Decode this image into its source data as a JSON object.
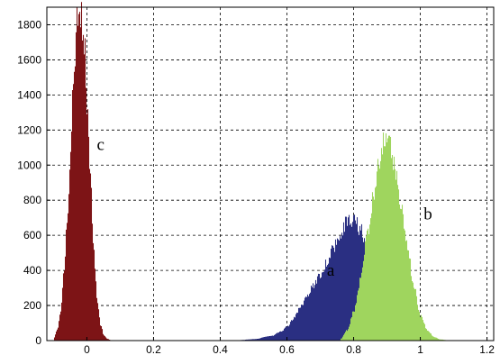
{
  "chart_data": {
    "type": "histogram",
    "title": "",
    "xlabel": "",
    "ylabel": "",
    "xlim": [
      -0.12,
      1.22
    ],
    "ylim": [
      0,
      1900
    ],
    "x_ticks": [
      0,
      0.2,
      0.4,
      0.6,
      0.8,
      1,
      1.2
    ],
    "x_tick_labels": [
      "0",
      "0.2",
      "0.4",
      "0.6",
      "0.8",
      "1",
      "1.2"
    ],
    "y_ticks": [
      0,
      200,
      400,
      600,
      800,
      1000,
      1200,
      1400,
      1600,
      1800
    ],
    "y_tick_labels": [
      "0",
      "200",
      "400",
      "600",
      "800",
      "1000",
      "1200",
      "1400",
      "1600",
      "1800"
    ],
    "grid": true,
    "legend": "none",
    "series": [
      {
        "label": "c",
        "color": "#7d1416",
        "x": [
          -0.1,
          -0.09,
          -0.08,
          -0.07,
          -0.06,
          -0.05,
          -0.04,
          -0.03,
          -0.02,
          -0.01,
          0,
          0.01,
          0.02,
          0.03,
          0.04,
          0.05,
          0.06,
          0.07
        ],
        "values": [
          15,
          60,
          160,
          380,
          700,
          1100,
          1500,
          1800,
          1900,
          1750,
          1350,
          900,
          500,
          230,
          90,
          30,
          10,
          3
        ]
      },
      {
        "label": "a",
        "color": "#2a2f82",
        "x": [
          0.45,
          0.5,
          0.55,
          0.58,
          0.6,
          0.62,
          0.64,
          0.66,
          0.68,
          0.7,
          0.72,
          0.74,
          0.76,
          0.78,
          0.8,
          0.82,
          0.84,
          0.86,
          0.88,
          0.9,
          0.92,
          0.94,
          0.96,
          0.98,
          1
        ],
        "values": [
          2,
          8,
          25,
          50,
          80,
          130,
          190,
          260,
          320,
          380,
          450,
          530,
          620,
          680,
          690,
          630,
          520,
          400,
          280,
          180,
          100,
          50,
          20,
          8,
          2
        ]
      },
      {
        "label": "b",
        "color": "#9fd55e",
        "x": [
          0.76,
          0.78,
          0.8,
          0.82,
          0.84,
          0.86,
          0.88,
          0.89,
          0.9,
          0.91,
          0.92,
          0.94,
          0.96,
          0.98,
          1,
          1.02,
          1.04,
          1.06,
          1.08
        ],
        "values": [
          10,
          60,
          170,
          350,
          600,
          850,
          1050,
          1120,
          1140,
          1090,
          1000,
          780,
          530,
          300,
          140,
          60,
          20,
          6,
          2
        ]
      }
    ],
    "annotations": [
      {
        "text": "c",
        "x": 0.03,
        "y": 1085
      },
      {
        "text": "a",
        "x": 0.72,
        "y": 370
      },
      {
        "text": "b",
        "x": 1.01,
        "y": 690
      }
    ]
  }
}
